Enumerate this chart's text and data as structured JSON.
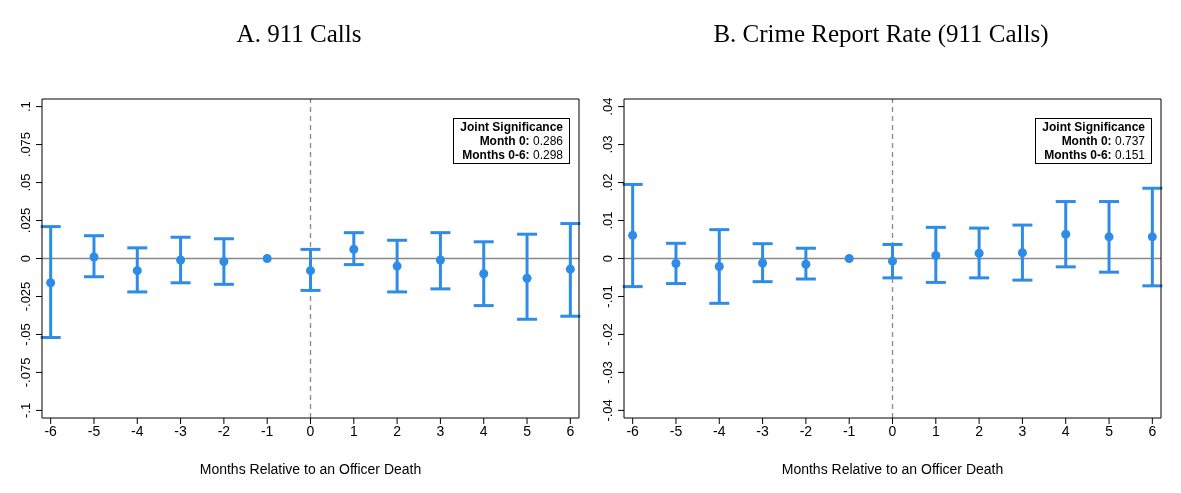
{
  "chart_data": [
    {
      "type": "scatter",
      "title": "A. 911 Calls",
      "xlabel": "Months Relative to an Officer Death",
      "x": [
        -6,
        -5,
        -4,
        -3,
        -2,
        -1,
        0,
        1,
        2,
        3,
        4,
        5,
        6
      ],
      "series": [
        {
          "color": "#2f8ce6",
          "values": [
            -0.016,
            0.001,
            -0.008,
            -0.001,
            -0.002,
            0,
            -0.008,
            0.006,
            -0.005,
            -0.001,
            -0.01,
            -0.013,
            -0.007
          ],
          "errors": [
            [
              -0.052,
              0.021
            ],
            [
              -0.012,
              0.015
            ],
            [
              -0.022,
              0.007
            ],
            [
              -0.016,
              0.014
            ],
            [
              -0.017,
              0.013
            ],
            null,
            [
              -0.021,
              0.006
            ],
            [
              -0.004,
              0.017
            ],
            [
              -0.022,
              0.012
            ],
            [
              -0.02,
              0.017
            ],
            [
              -0.031,
              0.011
            ],
            [
              -0.04,
              0.016
            ],
            [
              -0.038,
              0.023
            ]
          ]
        }
      ],
      "marker": "circle",
      "xlim": [
        -6.2,
        6.2
      ],
      "xticks": [
        -6,
        -5,
        -4,
        -3,
        -2,
        -1,
        0,
        1,
        2,
        3,
        4,
        5,
        6
      ],
      "ylim": [
        -0.105,
        0.105
      ],
      "yticks": [
        {
          "value": -0.1,
          "label": "-.1"
        },
        {
          "value": -0.075,
          "label": "-.075"
        },
        {
          "value": -0.05,
          "label": "-.05"
        },
        {
          "value": -0.025,
          "label": "-.025"
        },
        0,
        {
          "value": 0.025,
          "label": ".025"
        },
        {
          "value": 0.05,
          "label": ".05"
        },
        {
          "value": 0.075,
          "label": ".075"
        },
        {
          "value": 0.1,
          "label": ".1"
        }
      ],
      "ref_lines": [
        {
          "axis": "y",
          "value": 0,
          "color": "#888888",
          "line_style": "solid"
        },
        {
          "axis": "x",
          "value": 0,
          "color": "#888888",
          "line_style": "dashed"
        }
      ],
      "annotations": [
        "Joint Significance",
        "Month 0: 0.286",
        "Months 0-6: 0.298"
      ],
      "grid": false,
      "legend": false
    },
    {
      "type": "scatter",
      "title": "B. Crime Report Rate (911 Calls)",
      "xlabel": "Months Relative to an Officer Death",
      "x": [
        -6,
        -5,
        -4,
        -3,
        -2,
        -1,
        0,
        1,
        2,
        3,
        4,
        5,
        6
      ],
      "series": [
        {
          "color": "#2f8ce6",
          "values": [
            0.0061,
            -0.0013,
            -0.0021,
            -0.0012,
            -0.0015,
            0,
            -0.0007,
            0.0008,
            0.0014,
            0.0015,
            0.0064,
            0.0057,
            0.0057
          ],
          "errors": [
            [
              -0.0074,
              0.0195
            ],
            [
              -0.0066,
              0.004
            ],
            [
              -0.0118,
              0.0076
            ],
            [
              -0.0061,
              0.0039
            ],
            [
              -0.0054,
              0.0027
            ],
            null,
            [
              -0.0051,
              0.0037
            ],
            [
              -0.0063,
              0.0082
            ],
            [
              -0.0051,
              0.008
            ],
            [
              -0.0057,
              0.0088
            ],
            [
              -0.0022,
              0.015
            ],
            [
              -0.0036,
              0.015
            ],
            [
              -0.0072,
              0.0185
            ]
          ]
        }
      ],
      "marker": "circle",
      "xlim": [
        -6.2,
        6.2
      ],
      "xticks": [
        -6,
        -5,
        -4,
        -3,
        -2,
        -1,
        0,
        1,
        2,
        3,
        4,
        5,
        6
      ],
      "ylim": [
        -0.042,
        0.042
      ],
      "yticks": [
        {
          "value": -0.04,
          "label": "-.04"
        },
        {
          "value": -0.03,
          "label": "-.03"
        },
        {
          "value": -0.02,
          "label": "-.02"
        },
        {
          "value": -0.01,
          "label": "-.01"
        },
        0,
        {
          "value": 0.01,
          "label": ".01"
        },
        {
          "value": 0.02,
          "label": ".02"
        },
        {
          "value": 0.03,
          "label": ".03"
        },
        {
          "value": 0.04,
          "label": ".04"
        }
      ],
      "ref_lines": [
        {
          "axis": "y",
          "value": 0,
          "color": "#888888",
          "line_style": "solid"
        },
        {
          "axis": "x",
          "value": 0,
          "color": "#888888",
          "line_style": "dashed"
        }
      ],
      "annotations": [
        "Joint Significance",
        "Month 0: 0.737",
        "Months 0-6: 0.151"
      ],
      "grid": false,
      "legend": false
    }
  ]
}
